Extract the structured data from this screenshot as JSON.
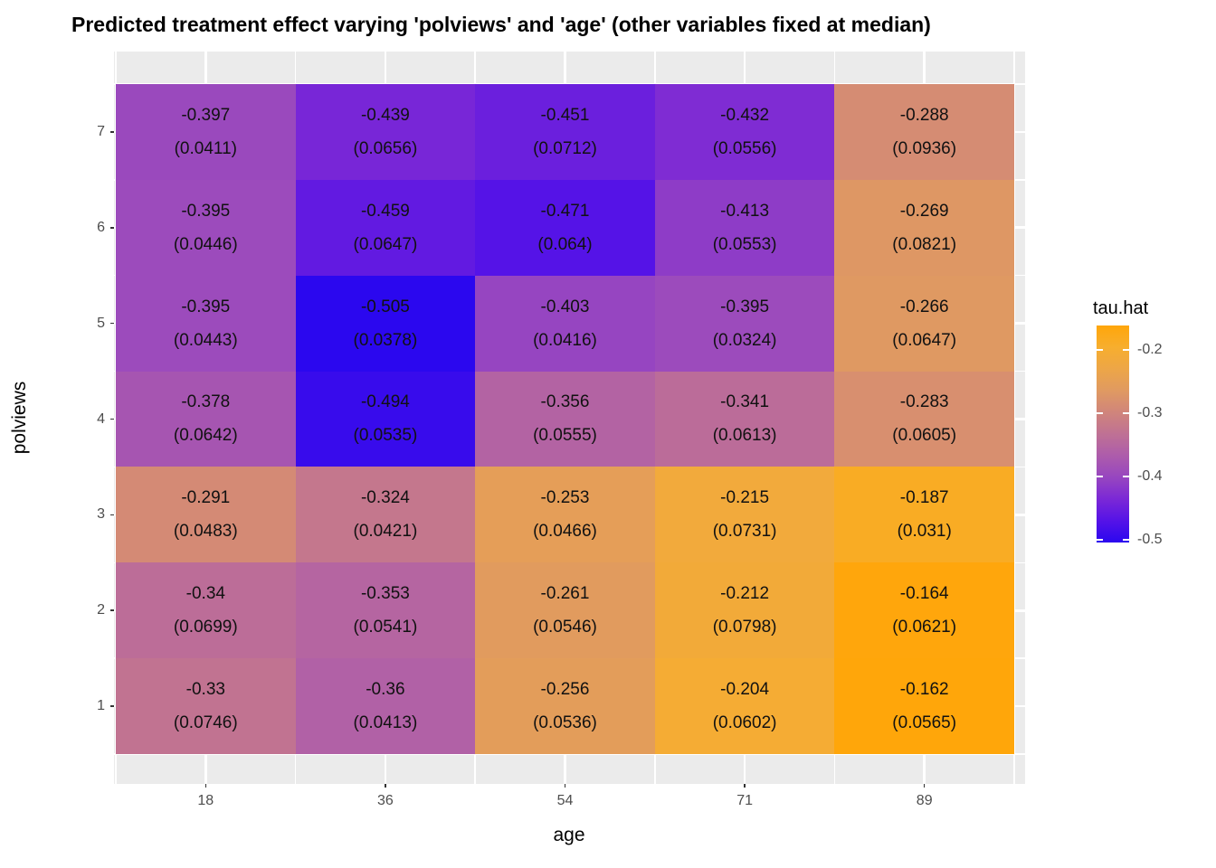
{
  "title": "Predicted treatment effect varying 'polviews' and 'age' (other variables fixed at median)",
  "chart_data": {
    "type": "heatmap",
    "title": "Predicted treatment effect varying 'polviews' and 'age' (other variables fixed at median)",
    "xlabel": "age",
    "ylabel": "polviews",
    "x_categories": [
      "18",
      "36",
      "54",
      "71",
      "89"
    ],
    "y_categories_top_to_bottom": [
      "7",
      "6",
      "5",
      "4",
      "3",
      "2",
      "1"
    ],
    "legend": {
      "title": "tau.hat",
      "tick_labels": [
        "-0.2",
        "-0.3",
        "-0.4",
        "-0.5"
      ],
      "tick_values": [
        -0.2,
        -0.3,
        -0.4,
        -0.5
      ],
      "min": -0.505,
      "max": -0.162
    },
    "gradient_stops": [
      [
        0.0,
        "#2b07ef"
      ],
      [
        0.1,
        "#5513e7"
      ],
      [
        0.2,
        "#7b28d6"
      ],
      [
        0.3,
        "#9746c0"
      ],
      [
        0.4,
        "#ad5cab"
      ],
      [
        0.5,
        "#bf7194"
      ],
      [
        0.6,
        "#d0857b"
      ],
      [
        0.7,
        "#e09a61"
      ],
      [
        0.8,
        "#eda647"
      ],
      [
        0.9,
        "#f7ae2e"
      ],
      [
        1.0,
        "#ffa60a"
      ]
    ],
    "rows": [
      {
        "polviews": "7",
        "cells": [
          {
            "estimate": "-0.397",
            "se": "(0.0411)"
          },
          {
            "estimate": "-0.439",
            "se": "(0.0656)"
          },
          {
            "estimate": "-0.451",
            "se": "(0.0712)"
          },
          {
            "estimate": "-0.432",
            "se": "(0.0556)"
          },
          {
            "estimate": "-0.288",
            "se": "(0.0936)"
          }
        ]
      },
      {
        "polviews": "6",
        "cells": [
          {
            "estimate": "-0.395",
            "se": "(0.0446)"
          },
          {
            "estimate": "-0.459",
            "se": "(0.0647)"
          },
          {
            "estimate": "-0.471",
            "se": "(0.064)"
          },
          {
            "estimate": "-0.413",
            "se": "(0.0553)"
          },
          {
            "estimate": "-0.269",
            "se": "(0.0821)"
          }
        ]
      },
      {
        "polviews": "5",
        "cells": [
          {
            "estimate": "-0.395",
            "se": "(0.0443)"
          },
          {
            "estimate": "-0.505",
            "se": "(0.0378)"
          },
          {
            "estimate": "-0.403",
            "se": "(0.0416)"
          },
          {
            "estimate": "-0.395",
            "se": "(0.0324)"
          },
          {
            "estimate": "-0.266",
            "se": "(0.0647)"
          }
        ]
      },
      {
        "polviews": "4",
        "cells": [
          {
            "estimate": "-0.378",
            "se": "(0.0642)"
          },
          {
            "estimate": "-0.494",
            "se": "(0.0535)"
          },
          {
            "estimate": "-0.356",
            "se": "(0.0555)"
          },
          {
            "estimate": "-0.341",
            "se": "(0.0613)"
          },
          {
            "estimate": "-0.283",
            "se": "(0.0605)"
          }
        ]
      },
      {
        "polviews": "3",
        "cells": [
          {
            "estimate": "-0.291",
            "se": "(0.0483)"
          },
          {
            "estimate": "-0.324",
            "se": "(0.0421)"
          },
          {
            "estimate": "-0.253",
            "se": "(0.0466)"
          },
          {
            "estimate": "-0.215",
            "se": "(0.0731)"
          },
          {
            "estimate": "-0.187",
            "se": "(0.031)"
          }
        ]
      },
      {
        "polviews": "2",
        "cells": [
          {
            "estimate": "-0.34",
            "se": "(0.0699)"
          },
          {
            "estimate": "-0.353",
            "se": "(0.0541)"
          },
          {
            "estimate": "-0.261",
            "se": "(0.0546)"
          },
          {
            "estimate": "-0.212",
            "se": "(0.0798)"
          },
          {
            "estimate": "-0.164",
            "se": "(0.0621)"
          }
        ]
      },
      {
        "polviews": "1",
        "cells": [
          {
            "estimate": "-0.33",
            "se": "(0.0746)"
          },
          {
            "estimate": "-0.36",
            "se": "(0.0413)"
          },
          {
            "estimate": "-0.256",
            "se": "(0.0536)"
          },
          {
            "estimate": "-0.204",
            "se": "(0.0602)"
          },
          {
            "estimate": "-0.162",
            "se": "(0.0565)"
          }
        ]
      }
    ]
  }
}
